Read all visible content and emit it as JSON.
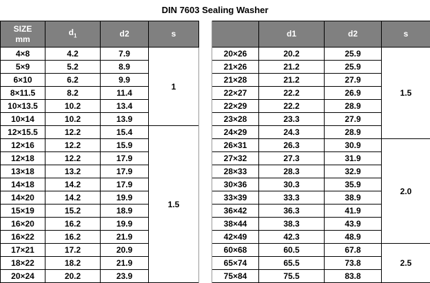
{
  "title": "DIN 7603 Sealing Washer",
  "left": {
    "headers": [
      [
        "SIZE",
        "mm"
      ],
      {
        "base": "d",
        "sub": "1"
      },
      "d2",
      "s"
    ],
    "rows": [
      [
        "4×8",
        "4.2",
        "7.9",
        "1"
      ],
      [
        "5×9",
        "5.2",
        "8.9",
        null
      ],
      [
        "6×10",
        "6.2",
        "9.9",
        null
      ],
      [
        "8×11.5",
        "8.2",
        "11.4",
        null
      ],
      [
        "10×13.5",
        "10.2",
        "13.4",
        null
      ],
      [
        "10×14",
        "10.2",
        "13.9",
        null
      ],
      [
        "12×15.5",
        "12.2",
        "15.4",
        "1.5"
      ],
      [
        "12×16",
        "12.2",
        "15.9",
        null
      ],
      [
        "12×18",
        "12.2",
        "17.9",
        null
      ],
      [
        "13×18",
        "13.2",
        "17.9",
        null
      ],
      [
        "14×18",
        "14.2",
        "17.9",
        null
      ],
      [
        "14×20",
        "14.2",
        "19.9",
        null
      ],
      [
        "15×19",
        "15.2",
        "18.9",
        null
      ],
      [
        "16×20",
        "16.2",
        "19.9",
        null
      ],
      [
        "16×22",
        "16.2",
        "21.9",
        null
      ],
      [
        "17×21",
        "17.2",
        "20.9",
        null
      ],
      [
        "18×22",
        "18.2",
        "21.9",
        null
      ],
      [
        "20×24",
        "20.2",
        "23.9",
        null
      ]
    ]
  },
  "right": {
    "headers": [
      null,
      "d1",
      "d2",
      "s"
    ],
    "rows": [
      [
        "20×26",
        "20.2",
        "25.9",
        "1.5"
      ],
      [
        "21×26",
        "21.2",
        "25.9",
        null
      ],
      [
        "21×28",
        "21.2",
        "27.9",
        null
      ],
      [
        "22×27",
        "22.2",
        "26.9",
        null
      ],
      [
        "22×29",
        "22.2",
        "28.9",
        null
      ],
      [
        "23×28",
        "23.3",
        "27.9",
        null
      ],
      [
        "24×29",
        "24.3",
        "28.9",
        null
      ],
      [
        "26×31",
        "26.3",
        "30.9",
        "2.0"
      ],
      [
        "27×32",
        "27.3",
        "31.9",
        null
      ],
      [
        "28×33",
        "28.3",
        "32.9",
        null
      ],
      [
        "30×36",
        "30.3",
        "35.9",
        null
      ],
      [
        "33×39",
        "33.3",
        "38.9",
        null
      ],
      [
        "36×42",
        "36.3",
        "41.9",
        null
      ],
      [
        "38×44",
        "38.3",
        "43.9",
        null
      ],
      [
        "42×49",
        "42.3",
        "48.9",
        null
      ],
      [
        "60×68",
        "60.5",
        "67.8",
        "2.5"
      ],
      [
        "65×74",
        "65.5",
        "73.8",
        null
      ],
      [
        "75×84",
        "75.5",
        "83.8",
        null
      ]
    ]
  }
}
